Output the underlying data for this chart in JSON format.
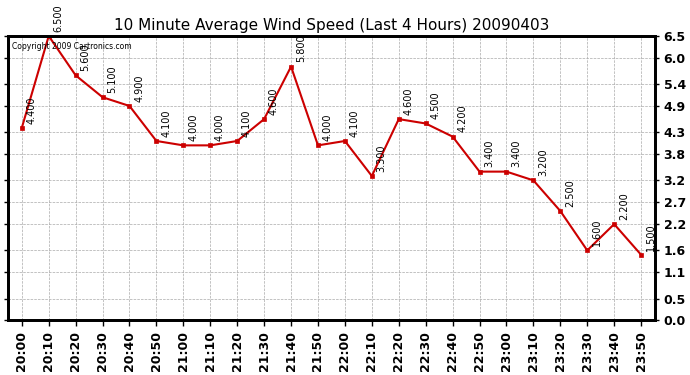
{
  "title": "10 Minute Average Wind Speed (Last 4 Hours) 20090403",
  "copyright": "Copyright 2009 Cartronics.com",
  "x_labels": [
    "20:00",
    "20:10",
    "20:20",
    "20:30",
    "20:40",
    "20:50",
    "21:00",
    "21:10",
    "21:20",
    "21:30",
    "21:40",
    "21:50",
    "22:00",
    "22:10",
    "22:20",
    "22:30",
    "22:40",
    "22:50",
    "23:00",
    "23:10",
    "23:20",
    "23:30",
    "23:40",
    "23:50"
  ],
  "y_values": [
    4.4,
    6.5,
    5.6,
    5.1,
    4.9,
    4.1,
    4.0,
    4.0,
    4.1,
    4.6,
    5.8,
    4.0,
    4.1,
    3.3,
    4.6,
    4.5,
    4.2,
    3.4,
    3.4,
    3.2,
    2.5,
    1.6,
    2.2,
    1.5
  ],
  "point_labels": [
    "4.400",
    "6.500",
    "5.600",
    "5.100",
    "4.900",
    "4.100",
    "4.000",
    "4.000",
    "4.100",
    "4.600",
    "5.800",
    "4.000",
    "4.100",
    "3.300",
    "4.600",
    "4.500",
    "4.200",
    "3.400",
    "3.400",
    "3.200",
    "2.500",
    "1.600",
    "2.200",
    "1.500"
  ],
  "line_color": "#cc0000",
  "marker_color": "#cc0000",
  "bg_color": "#ffffff",
  "grid_color": "#aaaaaa",
  "yticks": [
    0.0,
    0.5,
    1.1,
    1.6,
    2.2,
    2.7,
    3.2,
    3.8,
    4.3,
    4.9,
    5.4,
    6.0,
    6.5
  ],
  "ymin": 0.0,
  "ymax": 6.5,
  "title_fontsize": 11,
  "tick_fontsize": 9,
  "label_fontsize": 7
}
